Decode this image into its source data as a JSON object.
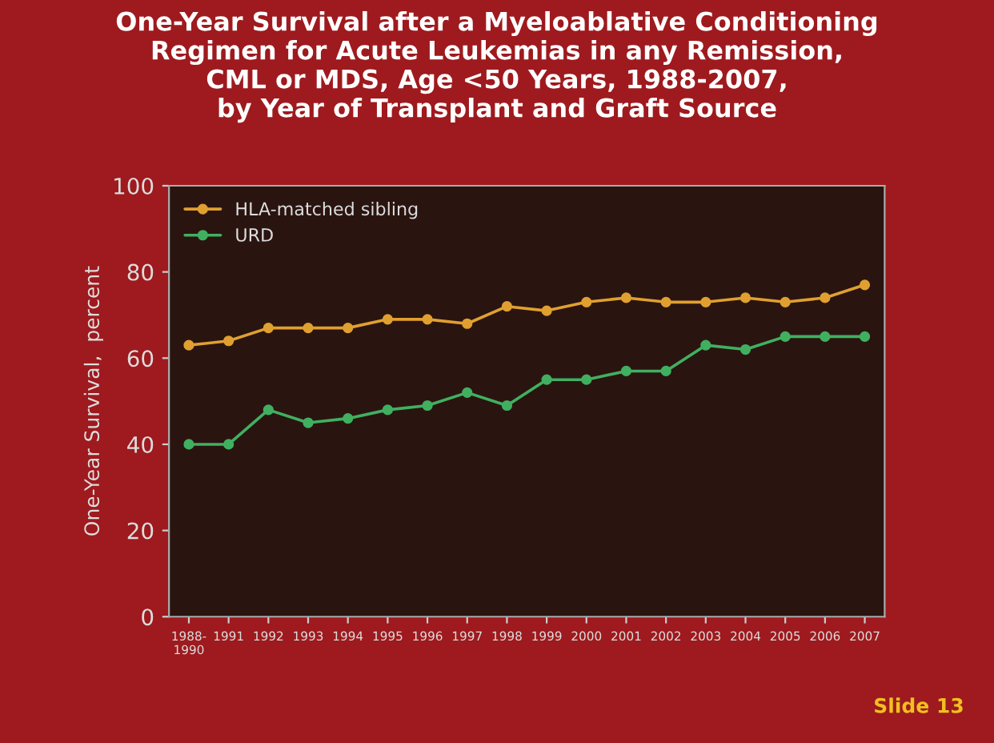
{
  "chart_data": {
    "type": "line",
    "title": "One-Year Survival after a Myeloablative Conditioning\nRegimen for Acute Leukemias in any Remission,\nCML or MDS, Age <50 Years, 1988-2007,\nby Year of Transplant and Graft Source",
    "ylabel": "One-Year Survival,  percent",
    "categories": [
      "1988-\n1990",
      "1991",
      "1992",
      "1993",
      "1994",
      "1995",
      "1996",
      "1997",
      "1998",
      "1999",
      "2000",
      "2001",
      "2002",
      "2003",
      "2004",
      "2005",
      "2006",
      "2007"
    ],
    "series": [
      {
        "name": "HLA-matched sibling",
        "color": "#e0a030",
        "values": [
          63,
          64,
          67,
          67,
          67,
          69,
          69,
          68,
          72,
          71,
          73,
          74,
          73,
          73,
          74,
          73,
          74,
          77
        ]
      },
      {
        "name": "URD",
        "color": "#40b060",
        "values": [
          40,
          40,
          48,
          45,
          46,
          48,
          49,
          52,
          49,
          55,
          55,
          57,
          57,
          63,
          62,
          65,
          65,
          65
        ]
      }
    ],
    "ylim": [
      0,
      100
    ],
    "yticks": [
      0,
      20,
      40,
      60,
      80,
      100
    ],
    "grid": false,
    "legend": "top left",
    "marker": "circle",
    "line_style": "solid",
    "annotations": [
      "Slide 13"
    ]
  }
}
